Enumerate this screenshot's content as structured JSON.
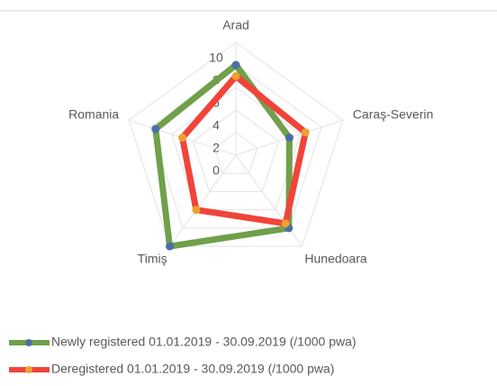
{
  "chart_data": {
    "type": "radar",
    "categories": [
      "Arad",
      "Caraş-Severin",
      "Hunedoara",
      "Timiş",
      "Romania"
    ],
    "series": [
      {
        "name": "Newly registered 01.01.2019 - 30.09.2019 (/1000 pwa)",
        "color": "#70a04a",
        "marker_color": "#4a6fa5",
        "values": [
          8,
          5,
          8,
          10,
          7.5
        ]
      },
      {
        "name": "Deregistered 01.01.2019 - 30.09.2019 (/1000 pwa)",
        "color": "#f0443a",
        "marker_color": "#f0a030",
        "values": [
          7,
          6.5,
          7.5,
          6,
          5
        ]
      }
    ],
    "ylim": [
      0,
      10
    ],
    "yticks": [
      0,
      2,
      4,
      6,
      8,
      10
    ],
    "grid": true,
    "legend": "bottom"
  }
}
